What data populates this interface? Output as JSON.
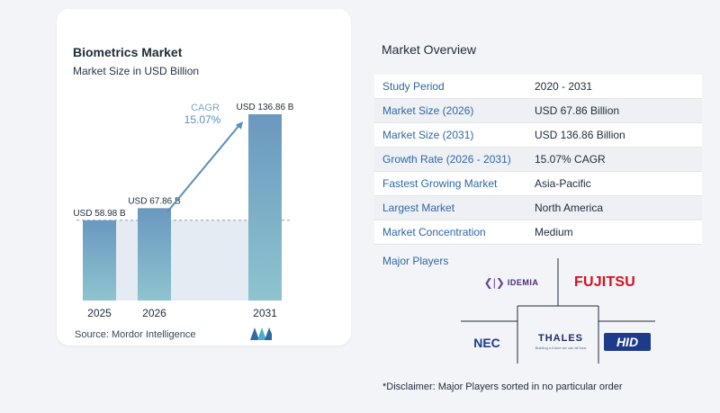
{
  "chart": {
    "title": "Biometrics Market",
    "subtitle": "Market Size in USD Billion",
    "cagr_label": "CAGR",
    "cagr_value": "15.07%",
    "source": "Source:  Mordor Intelligence"
  },
  "chart_data": {
    "type": "bar",
    "title": "Biometrics Market",
    "subtitle": "Market Size in USD Billion",
    "categories": [
      "2025",
      "2026",
      "2031"
    ],
    "values": [
      58.98,
      67.86,
      136.86
    ],
    "data_labels": [
      "USD 58.98 B",
      "USD 67.86 B",
      "USD 136.86 B"
    ],
    "ylabel": "",
    "xlabel": "",
    "ylim": [
      0,
      150
    ],
    "annotation": "CAGR 15.07%",
    "grid": false,
    "bar_color": "#6b9ac0",
    "bar_color_light": "#8fbfcf"
  },
  "overview": {
    "title": "Market Overview",
    "rows": [
      {
        "label": "Study Period",
        "value": "2020 - 2031"
      },
      {
        "label": "Market Size (2026)",
        "value": "USD 67.86 Billion"
      },
      {
        "label": "Market Size (2031)",
        "value": "USD 136.86 Billion"
      },
      {
        "label": "Growth Rate (2026 - 2031)",
        "value": "15.07% CAGR"
      },
      {
        "label": "Fastest Growing Market",
        "value": "Asia-Pacific"
      },
      {
        "label": "Largest Market",
        "value": "North America"
      },
      {
        "label": "Market Concentration",
        "value": "Medium"
      }
    ]
  },
  "players": {
    "title": "Major Players",
    "idemia": "IDEMIA",
    "fujitsu": "FUJITSU",
    "nec": "NEC",
    "thales": "THALES",
    "thales_tagline": "Building a future we can all trust",
    "hid": "HID"
  },
  "disclaimer": "*Disclaimer: Major Players sorted in no particular order",
  "colors": {
    "accent_blue": "#2e67a4",
    "bar_top": "#6b9ac0",
    "bar_bottom": "#8fc3d0",
    "cagr": "#5b8fb9"
  }
}
